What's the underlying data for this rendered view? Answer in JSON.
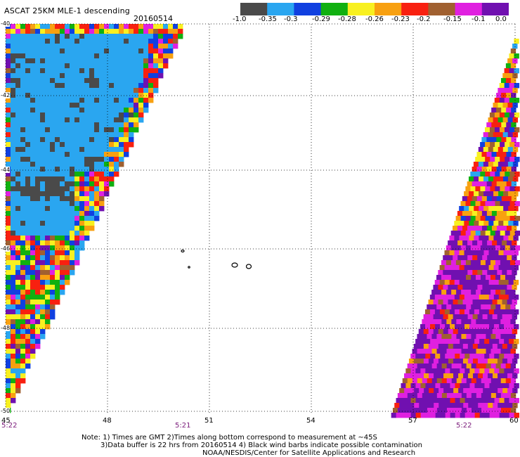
{
  "header": {
    "title": "ASCAT 25KM MLE-1 descending",
    "date": "20160514"
  },
  "colorbar": {
    "labels": [
      "-1.0",
      "-0.35",
      "-0.3",
      "-0.29",
      "-0.28",
      "-0.26",
      "-0.23",
      "-0.2",
      "-0.15",
      "-0.1",
      "0.0"
    ],
    "colors": [
      "#4a4a4a",
      "#2aa6f0",
      "#1040e0",
      "#10b010",
      "#f8f020",
      "#f8a010",
      "#f82010",
      "#a06030",
      "#e020e0",
      "#7010b0"
    ]
  },
  "map_axes": {
    "x_ticks": [
      "45",
      "48",
      "51",
      "54",
      "57",
      "60"
    ],
    "y_ticks": [
      "-40",
      "-42",
      "-44",
      "-46",
      "-48",
      "-50"
    ],
    "lon_range": [
      45,
      60
    ],
    "lat_range": [
      -50,
      -40
    ],
    "grid": "dotted"
  },
  "time_labels": [
    "5:22",
    "5:21",
    "5:22"
  ],
  "notes": {
    "line1": "Note: 1) Times are GMT 2)Times along bottom correspond to measurement at ~45S",
    "line2": "3)Data buffer is 22 hrs from 20160514 4) Black wind barbs indicate possible contamination",
    "line3": "NOAA/NESDIS/Center for Satellite Applications and Research"
  }
}
